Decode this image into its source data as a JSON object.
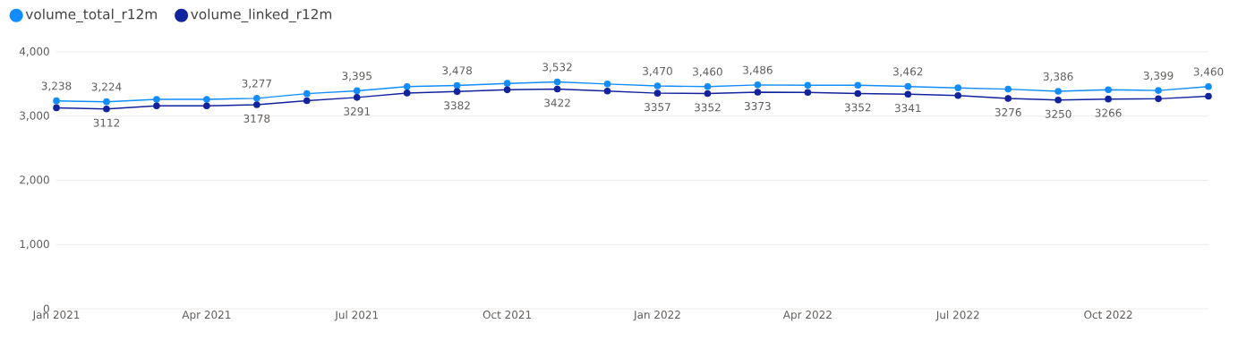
{
  "chart_data": {
    "type": "line",
    "x": [
      "2021-01",
      "2021-02",
      "2021-03",
      "2021-04",
      "2021-05",
      "2021-06",
      "2021-07",
      "2021-08",
      "2021-09",
      "2021-10",
      "2021-11",
      "2021-12",
      "2022-01",
      "2022-02",
      "2022-03",
      "2022-04",
      "2022-05",
      "2022-06",
      "2022-07",
      "2022-08",
      "2022-09",
      "2022-10",
      "2022-11",
      "2022-12"
    ],
    "series": [
      {
        "name": "volume_total_r12m",
        "color": "#118dff",
        "values": [
          3238,
          3224,
          3260,
          3260,
          3277,
          3350,
          3395,
          3460,
          3478,
          3510,
          3532,
          3500,
          3470,
          3460,
          3486,
          3480,
          3480,
          3462,
          3440,
          3420,
          3386,
          3410,
          3399,
          3460
        ],
        "value_labels": [
          "3,238",
          "3,224",
          null,
          null,
          "3,277",
          null,
          "3,395",
          null,
          "3,478",
          null,
          "3,532",
          null,
          "3,470",
          "3,460",
          "3,486",
          null,
          null,
          "3,462",
          null,
          null,
          "3,386",
          null,
          "3,399",
          "3,460"
        ]
      },
      {
        "name": "volume_linked_r12m",
        "color": "#12239e",
        "values": [
          3130,
          3112,
          3160,
          3160,
          3178,
          3240,
          3291,
          3360,
          3382,
          3410,
          3422,
          3390,
          3357,
          3352,
          3373,
          3370,
          3352,
          3341,
          3320,
          3276,
          3250,
          3266,
          3270,
          3310
        ],
        "value_labels": [
          null,
          "3112",
          null,
          null,
          "3178",
          null,
          "3291",
          null,
          "3382",
          null,
          "3422",
          null,
          "3357",
          "3352",
          "3373",
          null,
          "3352",
          "3341",
          null,
          "3276",
          "3250",
          "3266",
          null,
          null
        ]
      }
    ],
    "xlim": [
      "2021-01",
      "2022-12"
    ],
    "xticks": [
      {
        "value": "2021-01",
        "label": "Jan 2021"
      },
      {
        "value": "2021-04",
        "label": "Apr 2021"
      },
      {
        "value": "2021-07",
        "label": "Jul 2021"
      },
      {
        "value": "2021-10",
        "label": "Oct 2021"
      },
      {
        "value": "2022-01",
        "label": "Jan 2022"
      },
      {
        "value": "2022-04",
        "label": "Apr 2022"
      },
      {
        "value": "2022-07",
        "label": "Jul 2022"
      },
      {
        "value": "2022-10",
        "label": "Oct 2022"
      }
    ],
    "ylim": [
      0,
      4000
    ],
    "yticks": [
      0,
      {
        "value": 1000,
        "label": "1,000"
      },
      {
        "value": 2000,
        "label": "2,000"
      },
      {
        "value": 3000,
        "label": "3,000"
      },
      {
        "value": 4000,
        "label": "4,000"
      }
    ],
    "grid": "y",
    "legend": "top left",
    "marker": "circle",
    "line_style": "solid"
  }
}
